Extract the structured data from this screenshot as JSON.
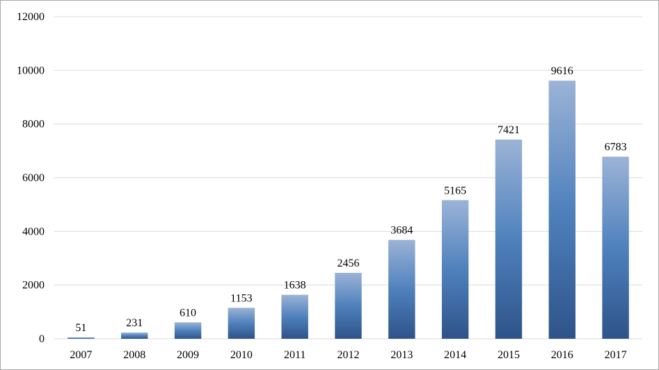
{
  "chart_data": {
    "type": "bar",
    "title": "",
    "xlabel": "",
    "ylabel": "",
    "categories": [
      "2007",
      "2008",
      "2009",
      "2010",
      "2011",
      "2012",
      "2013",
      "2014",
      "2015",
      "2016",
      "2017"
    ],
    "values": [
      51,
      231,
      610,
      1153,
      1638,
      2456,
      3684,
      5165,
      7421,
      9616,
      6783
    ],
    "data_labels": [
      "51",
      "231",
      "610",
      "1153",
      "1638",
      "2456",
      "3684",
      "5165",
      "7421",
      "9616",
      "6783"
    ],
    "ylim": [
      0,
      12000
    ],
    "yticks": [
      "0",
      "2000",
      "4000",
      "6000",
      "8000",
      "10000",
      "12000"
    ],
    "grid": true,
    "legend": "none",
    "colors": {
      "bar_top": "#9bb3d6",
      "bar_mid": "#4f81bd",
      "bar_bottom": "#2e5389",
      "grid": "#d9d9d9",
      "border": "#a6a6a6"
    }
  }
}
